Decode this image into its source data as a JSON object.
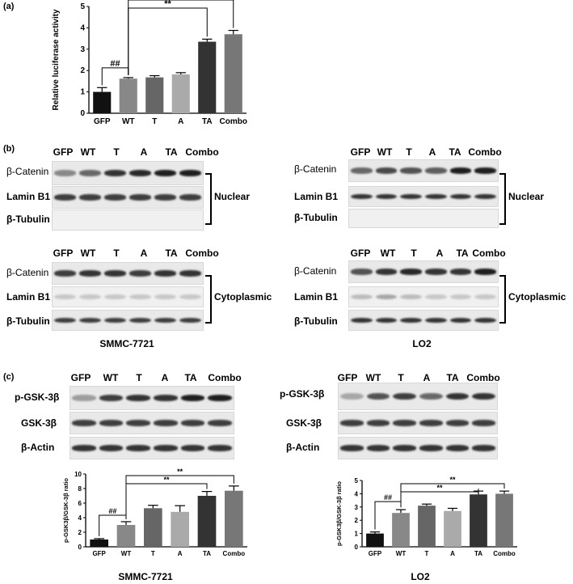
{
  "panels": {
    "a": "(a)",
    "b": "(b)",
    "c": "(c)"
  },
  "lanes": [
    "GFP",
    "WT",
    "T",
    "A",
    "TA",
    "Combo"
  ],
  "panel_b": {
    "proteins": [
      "β-Catenin",
      "Lamin B1",
      "β-Tubulin"
    ],
    "fractions": [
      "Nuclear",
      "Cytoplasmic"
    ],
    "cells": [
      "SMMC-7721",
      "LO2"
    ]
  },
  "panel_c": {
    "proteins": [
      "p-GSK-3β",
      "GSK-3β",
      "β-Actin"
    ],
    "cells": [
      "SMMC-7721",
      "LO2"
    ]
  },
  "chart_data": [
    {
      "id": "a",
      "type": "bar",
      "categories": [
        "GFP",
        "WT",
        "T",
        "A",
        "TA",
        "Combo"
      ],
      "values": [
        1.0,
        1.62,
        1.68,
        1.82,
        3.35,
        3.7
      ],
      "errors": [
        0.2,
        0.05,
        0.08,
        0.08,
        0.12,
        0.18
      ],
      "colors": [
        "#111111",
        "#888888",
        "#666666",
        "#aaaaaa",
        "#333333",
        "#777777"
      ],
      "ylabel": "Relative luciferase activity",
      "ylim": [
        0,
        5
      ],
      "yticks": [
        "0",
        "1",
        "2",
        "3",
        "4",
        "5"
      ],
      "annotations": [
        {
          "from": 0,
          "to": 1,
          "label": "##"
        },
        {
          "from": 1,
          "to": 4,
          "label": "**"
        },
        {
          "from": 1,
          "to": 5,
          "label": "**"
        }
      ]
    },
    {
      "id": "c-left",
      "type": "bar",
      "categories": [
        "GFP",
        "WT",
        "T",
        "A",
        "TA",
        "Combo"
      ],
      "values": [
        1.0,
        3.0,
        5.3,
        4.8,
        7.0,
        7.7
      ],
      "errors": [
        0.12,
        0.45,
        0.4,
        0.85,
        0.6,
        0.65
      ],
      "colors": [
        "#111111",
        "#888888",
        "#666666",
        "#aaaaaa",
        "#333333",
        "#777777"
      ],
      "ylabel": "p-GSK3β/GSK-3β ratio",
      "ylim": [
        0,
        10
      ],
      "yticks": [
        "0",
        "2",
        "4",
        "6",
        "8",
        "10"
      ],
      "annotations": [
        {
          "from": 0,
          "to": 1,
          "label": "##"
        },
        {
          "from": 1,
          "to": 4,
          "label": "**"
        },
        {
          "from": 1,
          "to": 5,
          "label": "**"
        }
      ]
    },
    {
      "id": "c-right",
      "type": "bar",
      "categories": [
        "GFP",
        "WT",
        "T",
        "A",
        "TA",
        "Combo"
      ],
      "values": [
        1.0,
        2.55,
        3.1,
        2.7,
        3.95,
        4.0
      ],
      "errors": [
        0.12,
        0.25,
        0.12,
        0.2,
        0.25,
        0.2
      ],
      "colors": [
        "#111111",
        "#888888",
        "#666666",
        "#aaaaaa",
        "#333333",
        "#777777"
      ],
      "ylabel": "p-GSK3β/GSK-3β ratio",
      "ylim": [
        0,
        5
      ],
      "yticks": [
        "0",
        "1",
        "2",
        "3",
        "4",
        "5"
      ],
      "annotations": [
        {
          "from": 0,
          "to": 1,
          "label": "##"
        },
        {
          "from": 1,
          "to": 4,
          "label": "**"
        },
        {
          "from": 1,
          "to": 5,
          "label": "**"
        }
      ]
    }
  ]
}
